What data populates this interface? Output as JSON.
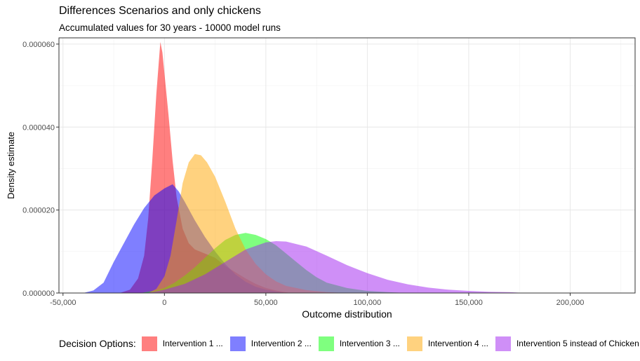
{
  "chart_data": {
    "type": "area",
    "title": "Differences Scenarios and only chickens",
    "subtitle": "Accumulated values for 30 years - 10000 model runs",
    "xlabel": "Outcome distribution",
    "ylabel": "Density estimate",
    "xlim": [
      -52000,
      232000
    ],
    "ylim": [
      0,
      6.15e-05
    ],
    "x_ticks": [
      -50000,
      0,
      50000,
      100000,
      150000,
      200000
    ],
    "x_tick_labels": [
      "-50,000",
      "0",
      "50,000",
      "100,000",
      "150,000",
      "200,000"
    ],
    "y_ticks": [
      0,
      2e-05,
      4e-05,
      6e-05
    ],
    "y_tick_labels": [
      "0.000000",
      "0.000020",
      "0.000040",
      "0.000060"
    ],
    "grid": true,
    "legend_title": "Decision Options:",
    "legend_position": "bottom",
    "series": [
      {
        "name": "Intervention 1 ...",
        "color": "#FF0000",
        "points": [
          [
            -22000,
            0
          ],
          [
            -17000,
            8e-07
          ],
          [
            -13000,
            3.5e-06
          ],
          [
            -10000,
            9e-06
          ],
          [
            -8000,
            1.8e-05
          ],
          [
            -6000,
            3.2e-05
          ],
          [
            -4000,
            4.8e-05
          ],
          [
            -2000,
            6.05e-05
          ],
          [
            -1000,
            5.8e-05
          ],
          [
            0,
            5.3e-05
          ],
          [
            2000,
            4.3e-05
          ],
          [
            4000,
            3.2e-05
          ],
          [
            6000,
            2.3e-05
          ],
          [
            9000,
            1.55e-05
          ],
          [
            12000,
            1.2e-05
          ],
          [
            15000,
            1.05e-05
          ],
          [
            20000,
            9.5e-06
          ],
          [
            25000,
            8.5e-06
          ],
          [
            30000,
            6.5e-06
          ],
          [
            35000,
            5e-06
          ],
          [
            40000,
            3.5e-06
          ],
          [
            45000,
            2.2e-06
          ],
          [
            50000,
            1.2e-06
          ],
          [
            55000,
            6e-07
          ],
          [
            62000,
            0
          ]
        ]
      },
      {
        "name": "Intervention 2 ...",
        "color": "#0000FF",
        "points": [
          [
            -40000,
            0
          ],
          [
            -35000,
            6e-07
          ],
          [
            -30000,
            2.5e-06
          ],
          [
            -25000,
            7.5e-06
          ],
          [
            -20000,
            1.2e-05
          ],
          [
            -15000,
            1.65e-05
          ],
          [
            -10000,
            2.05e-05
          ],
          [
            -5000,
            2.35e-05
          ],
          [
            0,
            2.52e-05
          ],
          [
            4000,
            2.62e-05
          ],
          [
            7000,
            2.45e-05
          ],
          [
            10000,
            2.2e-05
          ],
          [
            15000,
            1.75e-05
          ],
          [
            20000,
            1.35e-05
          ],
          [
            25000,
            1e-05
          ],
          [
            30000,
            7e-06
          ],
          [
            35000,
            4.5e-06
          ],
          [
            40000,
            2.7e-06
          ],
          [
            45000,
            1.5e-06
          ],
          [
            50000,
            8e-07
          ],
          [
            55000,
            4e-07
          ],
          [
            60000,
            0
          ]
        ]
      },
      {
        "name": "Intervention 3 ...",
        "color": "#00FF00",
        "points": [
          [
            -12000,
            0
          ],
          [
            -5000,
            5e-07
          ],
          [
            0,
            1.2e-06
          ],
          [
            5000,
            2.5e-06
          ],
          [
            10000,
            4.2e-06
          ],
          [
            15000,
            6.2e-06
          ],
          [
            20000,
            8.5e-06
          ],
          [
            25000,
            1.08e-05
          ],
          [
            30000,
            1.28e-05
          ],
          [
            35000,
            1.4e-05
          ],
          [
            40000,
            1.45e-05
          ],
          [
            45000,
            1.4e-05
          ],
          [
            50000,
            1.3e-05
          ],
          [
            55000,
            1.15e-05
          ],
          [
            60000,
            9.5e-06
          ],
          [
            65000,
            7.5e-06
          ],
          [
            70000,
            5.5e-06
          ],
          [
            75000,
            3.8e-06
          ],
          [
            80000,
            2.5e-06
          ],
          [
            90000,
            1.2e-06
          ],
          [
            100000,
            5e-07
          ],
          [
            110000,
            2e-07
          ],
          [
            120000,
            0
          ]
        ]
      },
      {
        "name": "Intervention 4 ...",
        "color": "#FFA500",
        "points": [
          [
            -8000,
            0
          ],
          [
            -4000,
            1e-06
          ],
          [
            0,
            4e-06
          ],
          [
            3000,
            9e-06
          ],
          [
            6000,
            1.75e-05
          ],
          [
            9000,
            2.65e-05
          ],
          [
            12000,
            3.15e-05
          ],
          [
            15000,
            3.35e-05
          ],
          [
            18000,
            3.32e-05
          ],
          [
            21000,
            3.15e-05
          ],
          [
            25000,
            2.8e-05
          ],
          [
            30000,
            2.2e-05
          ],
          [
            35000,
            1.55e-05
          ],
          [
            40000,
            1.05e-05
          ],
          [
            45000,
            7e-06
          ],
          [
            50000,
            4.5e-06
          ],
          [
            55000,
            2.8e-06
          ],
          [
            60000,
            1.7e-06
          ],
          [
            70000,
            7e-07
          ],
          [
            80000,
            2e-07
          ],
          [
            90000,
            0
          ]
        ]
      },
      {
        "name": "Intervention 5 instead of Chicken",
        "color": "#A020F0",
        "points": [
          [
            -10000,
            0
          ],
          [
            -5000,
            3e-07
          ],
          [
            0,
            8e-07
          ],
          [
            10000,
            2.2e-06
          ],
          [
            20000,
            4.5e-06
          ],
          [
            30000,
            7.5e-06
          ],
          [
            40000,
            1.05e-05
          ],
          [
            50000,
            1.22e-05
          ],
          [
            55000,
            1.25e-05
          ],
          [
            60000,
            1.24e-05
          ],
          [
            70000,
            1.12e-05
          ],
          [
            80000,
            9e-06
          ],
          [
            90000,
            6.7e-06
          ],
          [
            100000,
            4.8e-06
          ],
          [
            110000,
            3.2e-06
          ],
          [
            120000,
            2.1e-06
          ],
          [
            130000,
            1.3e-06
          ],
          [
            140000,
            8e-07
          ],
          [
            150000,
            5e-07
          ],
          [
            160000,
            3e-07
          ],
          [
            170000,
            2e-07
          ],
          [
            178000,
            0
          ]
        ]
      }
    ]
  }
}
